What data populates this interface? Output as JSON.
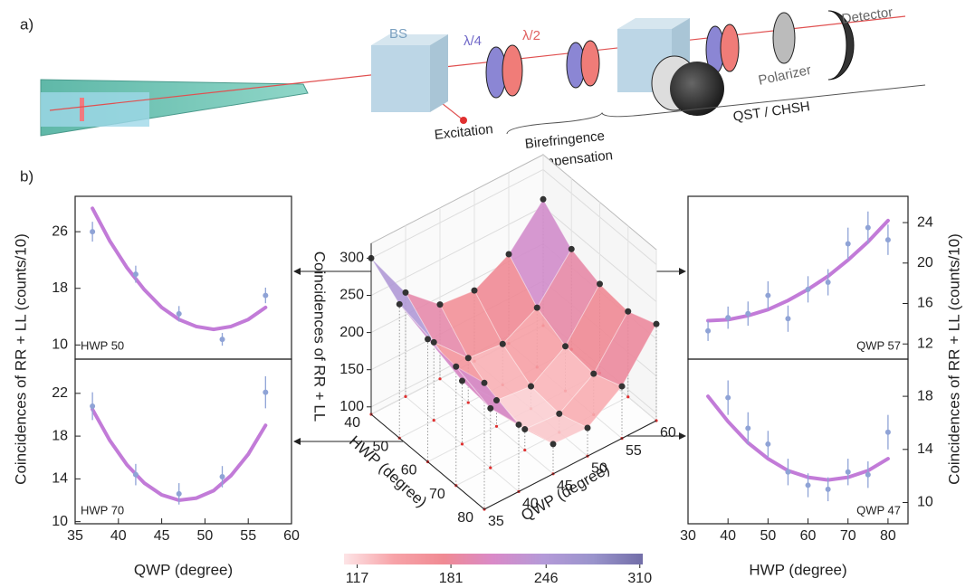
{
  "panel_labels": [
    "a)",
    "b)"
  ],
  "setup": {
    "bs": "BS",
    "qwp": "λ/4",
    "hwp": "λ/2",
    "excitation": "Excitation",
    "birefringence": [
      "Birefringence",
      "compensation"
    ],
    "qst": "QST / CHSH",
    "polarizer": "Polarizer",
    "detector": "Detector"
  },
  "chart_data": [
    {
      "type": "scatter",
      "annotation": "HWP 50",
      "y_axis_side": "left",
      "ylabel": "Coincidences of RR + LL (counts/10)",
      "x": [
        37,
        42,
        47,
        52,
        57
      ],
      "values": [
        26,
        20,
        14.4,
        10.8,
        17
      ],
      "errors": [
        1.4,
        1.2,
        1.1,
        0.9,
        1.1
      ],
      "color": "#8fa3d6",
      "fit": {
        "x": [
          37,
          39,
          41,
          43,
          45,
          47,
          49,
          51,
          53,
          55,
          57
        ],
        "values": [
          29.3,
          24.7,
          20.9,
          17.8,
          15.3,
          13.6,
          12.6,
          12.2,
          12.6,
          13.6,
          15.3
        ],
        "color": "#c27bd8"
      },
      "xlim": [
        35,
        60
      ],
      "ylim": [
        8,
        31
      ],
      "yticks": [
        10,
        18,
        26
      ]
    },
    {
      "type": "scatter",
      "annotation": "HWP 70",
      "y_axis_side": "left",
      "xlabel": "QWP (degree)",
      "x": [
        37,
        42,
        47,
        52,
        57
      ],
      "values": [
        20.8,
        14.4,
        12.6,
        14.2,
        22.1
      ],
      "errors": [
        1.3,
        1,
        1,
        1,
        1.5
      ],
      "color": "#8fa3d6",
      "fit": {
        "x": [
          37,
          39,
          41,
          43,
          45,
          47,
          49,
          51,
          53,
          55,
          57
        ],
        "values": [
          20.5,
          17.6,
          15.3,
          13.6,
          12.5,
          12,
          12.2,
          12.9,
          14.3,
          16.3,
          19
        ],
        "color": "#c27bd8"
      },
      "xlim": [
        35,
        60
      ],
      "ylim": [
        9.8,
        25.2
      ],
      "xticks": [
        35,
        40,
        45,
        50,
        55,
        60
      ],
      "yticks": [
        10,
        14,
        18,
        22
      ]
    },
    {
      "type": "scatter",
      "annotation": "QWP 57",
      "y_axis_side": "right",
      "ylabel": "Coincidences of RR + LL (counts/10)",
      "x": [
        35,
        40,
        45,
        50,
        55,
        60,
        65,
        70,
        75,
        80
      ],
      "values": [
        13.3,
        14.6,
        15,
        16.8,
        14.5,
        17.4,
        18.1,
        21.9,
        23.5,
        22.3
      ],
      "errors": [
        1,
        1.1,
        1.2,
        1.4,
        1.3,
        1.3,
        1.3,
        1.6,
        1.6,
        1.5
      ],
      "color": "#8fa3d6",
      "fit": {
        "x": [
          35,
          40,
          45,
          50,
          55,
          60,
          65,
          70,
          75,
          80
        ],
        "values": [
          14.3,
          14.4,
          14.8,
          15.4,
          16.3,
          17.4,
          18.7,
          20.3,
          22.1,
          24.2
        ],
        "color": "#c27bd8"
      },
      "xlim": [
        30,
        85
      ],
      "ylim": [
        10.5,
        26.6
      ],
      "yticks": [
        12,
        16,
        20,
        24
      ]
    },
    {
      "type": "scatter",
      "annotation": "QWP 47",
      "y_axis_side": "right",
      "xlabel": "HWP (degree)",
      "x": [
        40,
        45,
        50,
        55,
        60,
        65,
        70,
        75,
        80
      ],
      "values": [
        17.9,
        15.6,
        14.4,
        12.3,
        11.3,
        11,
        12.3,
        12.1,
        15.3
      ],
      "errors": [
        1.3,
        1.2,
        1,
        1,
        0.9,
        0.9,
        1,
        1,
        1.3
      ],
      "color": "#8fa3d6",
      "fit": {
        "x": [
          35,
          40,
          45,
          50,
          55,
          60,
          65,
          70,
          75,
          80
        ],
        "values": [
          18,
          16.1,
          14.5,
          13.3,
          12.4,
          11.9,
          11.7,
          11.9,
          12.4,
          13.3
        ],
        "color": "#c27bd8"
      },
      "xlim": [
        30,
        85
      ],
      "ylim": [
        8.4,
        20.8
      ],
      "xticks": [
        30,
        40,
        50,
        60,
        70,
        80
      ],
      "yticks": [
        10,
        14,
        18
      ]
    },
    {
      "type": "surface3d",
      "xlabel": "HWP (degree)",
      "ylabel": "QWP (degree)",
      "zlabel": "Coincidences of RR + LL",
      "hwp": [
        40,
        50,
        60,
        70,
        80
      ],
      "qwp": [
        35,
        40,
        45,
        50,
        55,
        60
      ],
      "z": [
        [
          300,
          230,
          190,
          185,
          210,
          260
        ],
        [
          270,
          195,
          150,
          145,
          170,
          225
        ],
        [
          255,
          175,
          125,
          120,
          150,
          210
        ],
        [
          250,
          170,
          118,
          115,
          145,
          205
        ],
        [
          260,
          180,
          130,
          128,
          160,
          220
        ]
      ],
      "hlim": [
        40,
        80
      ],
      "qlim": [
        35,
        60
      ],
      "zlim": [
        90,
        320
      ],
      "hticks": [
        40,
        50,
        60,
        70,
        80
      ],
      "qticks": [
        35,
        40,
        45,
        50,
        55,
        60
      ],
      "zticks": [
        100,
        150,
        200,
        250,
        300
      ]
    },
    {
      "type": "colorbar",
      "clim": [
        108,
        312
      ],
      "ticks": [
        117,
        181,
        246,
        310
      ],
      "colors": [
        "#fde4e6",
        "#f7a3a8",
        "#f08a93",
        "#d98ac8",
        "#b49ad8",
        "#9a94cc",
        "#726ea8"
      ]
    }
  ]
}
